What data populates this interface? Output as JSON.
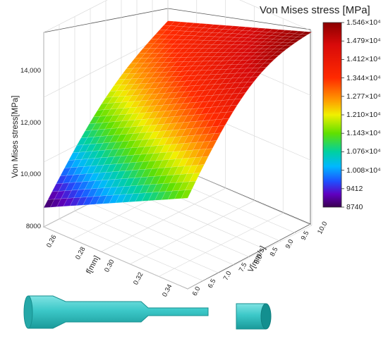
{
  "chart_data": {
    "type": "surface",
    "colorbar_title": "Von Mises stress [MPa]",
    "zlabel": "Von Mises stress[MPa]",
    "xlabel": "f[mm]",
    "ylabel": "V[mm/s]",
    "z_ticks": [
      "8000",
      "10,000",
      "12,000",
      "14,000"
    ],
    "x_ticks": [
      "0.26",
      "0.28",
      "0.30",
      "0.32",
      "0.34"
    ],
    "y_ticks": [
      "6.0",
      "6.5",
      "7.0",
      "7.5",
      "8.0",
      "8.5",
      "9.0",
      "9.5",
      "10.0"
    ],
    "colorbar_labels": [
      "1.546×10⁴",
      "1.479×10⁴",
      "1.412×10⁴",
      "1.344×10⁴",
      "1.277×10⁴",
      "1.210×10⁴",
      "1.143×10⁴",
      "1.076×10⁴",
      "1.008×10⁴",
      "9412",
      "8740"
    ],
    "colorbar_range": [
      8740,
      15460
    ],
    "colorbar_colors": [
      "#8b0000",
      "#e01010",
      "#ff3000",
      "#ff9a00",
      "#f0f000",
      "#70e000",
      "#00d040",
      "#00c8d8",
      "#0060ff",
      "#5000c0",
      "#3a0050"
    ],
    "x_range": [
      0.25,
      0.35
    ],
    "y_range": [
      6.0,
      10.0
    ],
    "z_range": [
      8000,
      15500
    ],
    "surface_corners": {
      "f_0.25_V_6.0": 8740,
      "f_0.35_V_6.0": 11500,
      "f_0.25_V_10.0": 13500,
      "f_0.35_V_10.0": 15460
    },
    "grid": true
  },
  "illustration": {
    "shaft_color": "#3cc8c8",
    "shaft_dark": "#138f8f"
  }
}
